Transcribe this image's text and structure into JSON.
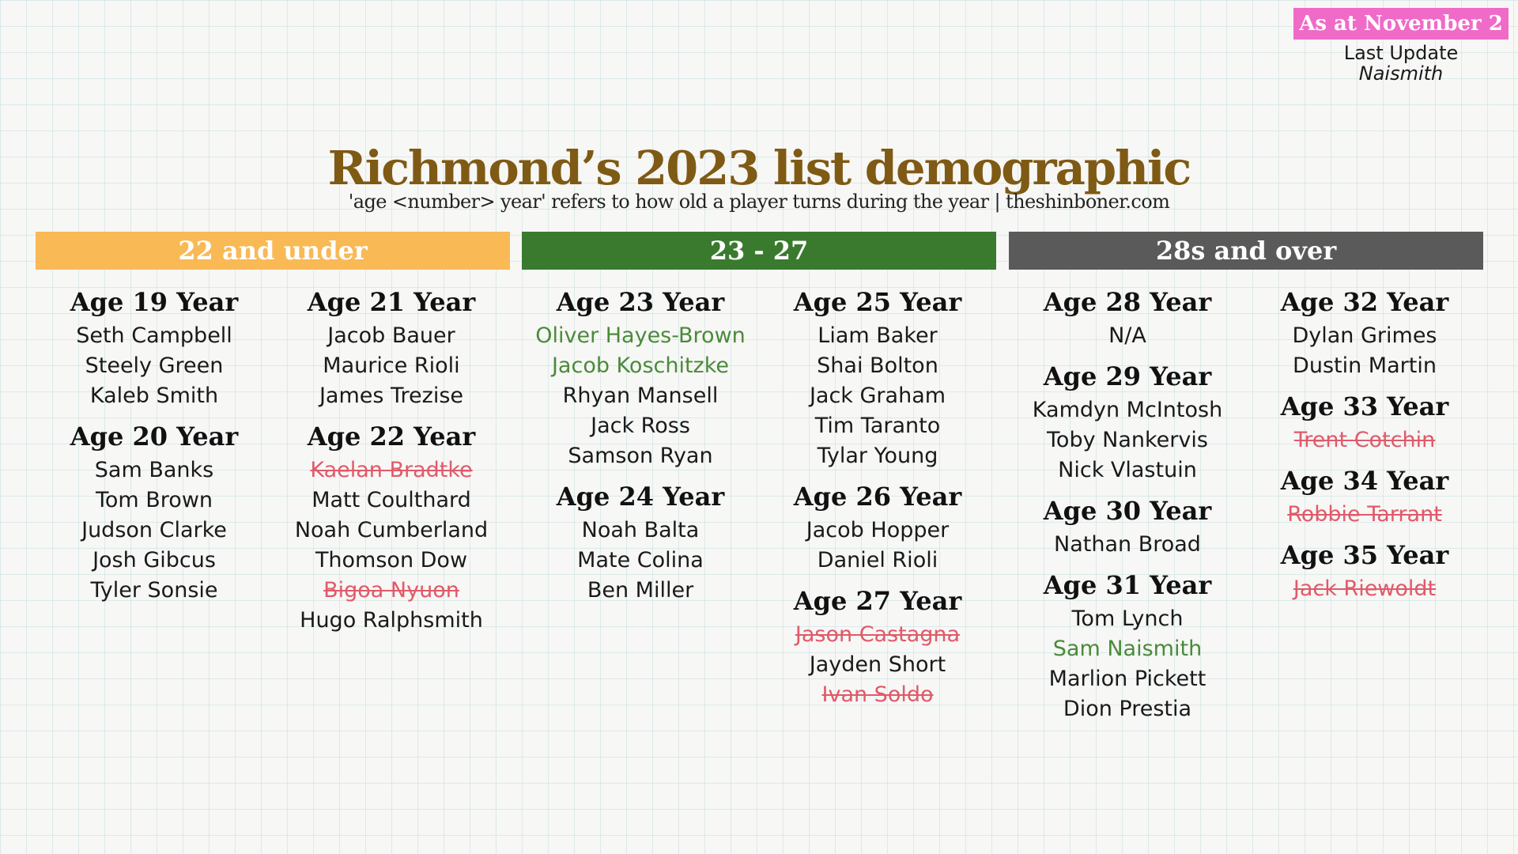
{
  "badge": "As at November 2",
  "last_update": {
    "label": "Last Update",
    "name": "Naismith"
  },
  "title": "Richmond’s 2023 list demographic",
  "subtitle": "'age <number> year' refers to how old a player turns during the year | theshinboner.com",
  "bands": [
    {
      "label": "22 and under",
      "color": "#f9b955"
    },
    {
      "label": "23 - 27",
      "color": "#3a7a2f"
    },
    {
      "label": "28s and over",
      "color": "#5a5a5a"
    }
  ],
  "columns": [
    {
      "groups": [
        {
          "heading": "Age 19 Year",
          "players": [
            {
              "name": "Seth Campbell",
              "status": "normal"
            },
            {
              "name": "Steely Green",
              "status": "normal"
            },
            {
              "name": "Kaleb Smith",
              "status": "normal"
            }
          ]
        },
        {
          "heading": "Age 20 Year",
          "players": [
            {
              "name": "Sam Banks",
              "status": "normal"
            },
            {
              "name": "Tom Brown",
              "status": "normal"
            },
            {
              "name": "Judson Clarke",
              "status": "normal"
            },
            {
              "name": "Josh Gibcus",
              "status": "normal"
            },
            {
              "name": "Tyler Sonsie",
              "status": "normal"
            }
          ]
        }
      ]
    },
    {
      "groups": [
        {
          "heading": "Age 21 Year",
          "players": [
            {
              "name": "Jacob Bauer",
              "status": "normal"
            },
            {
              "name": "Maurice Rioli",
              "status": "normal"
            },
            {
              "name": "James Trezise",
              "status": "normal"
            }
          ]
        },
        {
          "heading": "Age 22 Year",
          "players": [
            {
              "name": "Kaelan Bradtke",
              "status": "gone"
            },
            {
              "name": "Matt Coulthard",
              "status": "normal"
            },
            {
              "name": "Noah Cumberland",
              "status": "normal"
            },
            {
              "name": "Thomson Dow",
              "status": "normal"
            },
            {
              "name": "Bigoa Nyuon",
              "status": "gone"
            },
            {
              "name": "Hugo Ralphsmith",
              "status": "normal"
            }
          ]
        }
      ]
    },
    {
      "groups": [
        {
          "heading": "Age 23 Year",
          "players": [
            {
              "name": "Oliver Hayes-Brown",
              "status": "new"
            },
            {
              "name": "Jacob Koschitzke",
              "status": "new"
            },
            {
              "name": "Rhyan Mansell",
              "status": "normal"
            },
            {
              "name": "Jack Ross",
              "status": "normal"
            },
            {
              "name": "Samson Ryan",
              "status": "normal"
            }
          ]
        },
        {
          "heading": "Age 24 Year",
          "players": [
            {
              "name": "Noah Balta",
              "status": "normal"
            },
            {
              "name": "Mate Colina",
              "status": "normal"
            },
            {
              "name": "Ben Miller",
              "status": "normal"
            }
          ]
        }
      ]
    },
    {
      "groups": [
        {
          "heading": "Age 25 Year",
          "players": [
            {
              "name": "Liam Baker",
              "status": "normal"
            },
            {
              "name": "Shai Bolton",
              "status": "normal"
            },
            {
              "name": "Jack Graham",
              "status": "normal"
            },
            {
              "name": "Tim Taranto",
              "status": "normal"
            },
            {
              "name": "Tylar Young",
              "status": "normal"
            }
          ]
        },
        {
          "heading": "Age 26 Year",
          "players": [
            {
              "name": "Jacob Hopper",
              "status": "normal"
            },
            {
              "name": "Daniel Rioli",
              "status": "normal"
            }
          ]
        },
        {
          "heading": "Age 27 Year",
          "players": [
            {
              "name": "Jason Castagna",
              "status": "gone"
            },
            {
              "name": "Jayden Short",
              "status": "normal"
            },
            {
              "name": "Ivan Soldo",
              "status": "gone"
            }
          ]
        }
      ]
    },
    {
      "groups": [
        {
          "heading": "Age 28 Year",
          "players": [
            {
              "name": "N/A",
              "status": "normal"
            }
          ]
        },
        {
          "heading": "Age 29 Year",
          "players": [
            {
              "name": "Kamdyn McIntosh",
              "status": "normal"
            },
            {
              "name": "Toby Nankervis",
              "status": "normal"
            },
            {
              "name": "Nick Vlastuin",
              "status": "normal"
            }
          ]
        },
        {
          "heading": "Age 30 Year",
          "players": [
            {
              "name": "Nathan Broad",
              "status": "normal"
            }
          ]
        },
        {
          "heading": "Age 31 Year",
          "players": [
            {
              "name": "Tom Lynch",
              "status": "normal"
            },
            {
              "name": "Sam Naismith",
              "status": "new"
            },
            {
              "name": "Marlion Pickett",
              "status": "normal"
            },
            {
              "name": "Dion Prestia",
              "status": "normal"
            }
          ]
        }
      ]
    },
    {
      "groups": [
        {
          "heading": "Age 32 Year",
          "players": [
            {
              "name": "Dylan Grimes",
              "status": "normal"
            },
            {
              "name": "Dustin Martin",
              "status": "normal"
            }
          ]
        },
        {
          "heading": "Age 33 Year",
          "players": [
            {
              "name": "Trent Cotchin",
              "status": "gone"
            }
          ]
        },
        {
          "heading": "Age 34 Year",
          "players": [
            {
              "name": "Robbie Tarrant",
              "status": "gone"
            }
          ]
        },
        {
          "heading": "Age 35 Year",
          "players": [
            {
              "name": "Jack Riewoldt",
              "status": "gone"
            }
          ]
        }
      ]
    }
  ]
}
